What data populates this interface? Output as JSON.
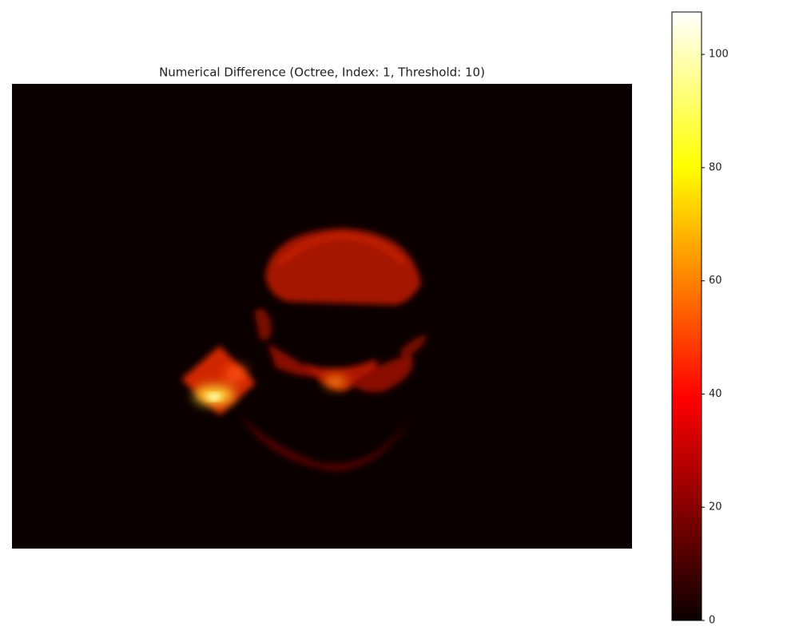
{
  "chart_data": {
    "type": "heatmap",
    "title": "Numerical Difference (Octree, Index: 1, Threshold: 10)",
    "colormap": "hot",
    "colorbar": {
      "ylim": [
        0,
        107.5
      ],
      "yticks": [
        0,
        20,
        40,
        60,
        80,
        100
      ]
    }
  }
}
